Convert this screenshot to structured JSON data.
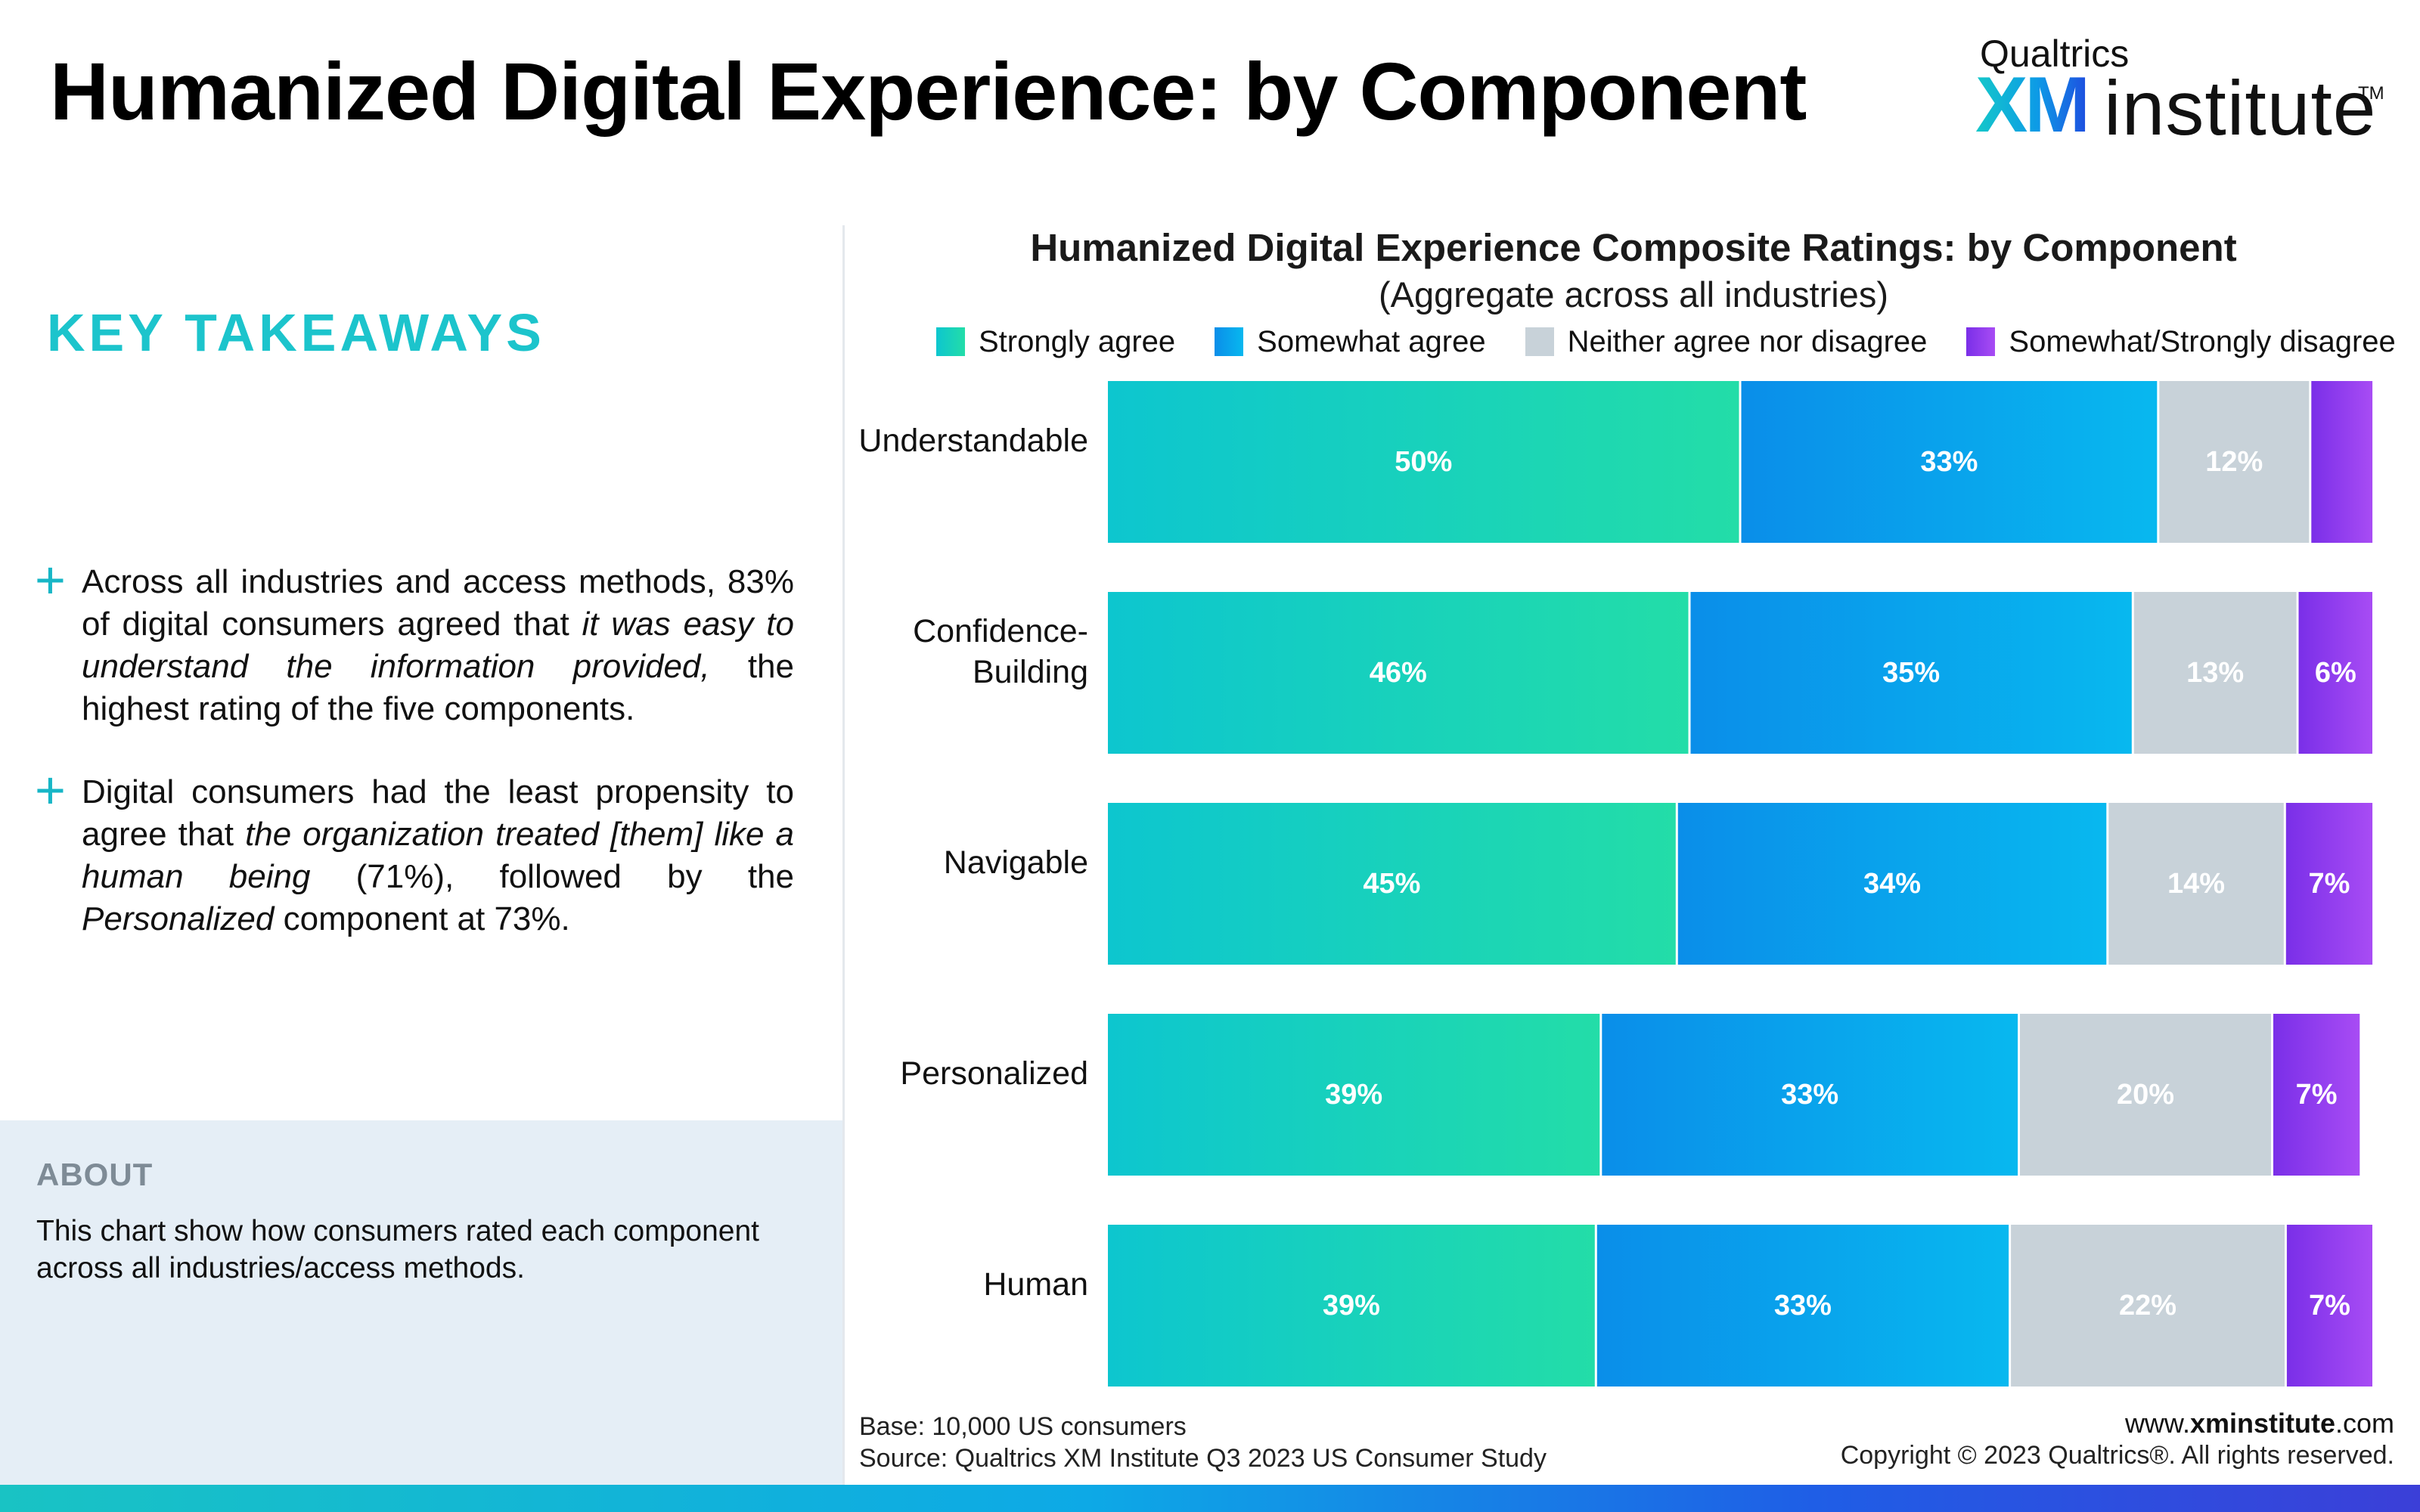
{
  "page": {
    "title": "Humanized Digital Experience: by Component"
  },
  "logo": {
    "brand": "Qualtrics",
    "xm": "XM",
    "institute": "institute",
    "tm": "TM"
  },
  "takeaways": {
    "heading": "KEY TAKEAWAYS",
    "items": [
      {
        "before": "Across all industries and access methods, 83% of digital consumers agreed that ",
        "emphasis": "it was easy to understand the information provided,",
        "after": " the highest rating of the five components."
      },
      {
        "before": "Digital consumers had the least propensity to agree that ",
        "emphasis": "the organization treated [them] like a human being",
        "middle": " (71%), followed by the ",
        "emphasis2": "Personalized",
        "after": " component at 73%."
      }
    ]
  },
  "about": {
    "heading": "ABOUT",
    "text": "This chart show how consumers rated each component across all industries/access methods."
  },
  "chart_data": {
    "type": "bar",
    "orientation": "horizontal",
    "stacked": true,
    "title": "Humanized Digital Experience Composite Ratings: by Component",
    "subtitle": "(Aggregate across all industries)",
    "legend_position": "top",
    "categories": [
      "Understandable",
      "Confidence-\nBuilding",
      "Navigable",
      "Personalized",
      "Human"
    ],
    "series": [
      {
        "name": "Strongly agree",
        "values": [
          50,
          46,
          45,
          39,
          39
        ],
        "labels": [
          "50%",
          "46%",
          "45%",
          "39%",
          "39%"
        ],
        "color_start": "#0dc6cf",
        "color_end": "#23dda8"
      },
      {
        "name": "Somewhat agree",
        "values": [
          33,
          35,
          34,
          33,
          33
        ],
        "labels": [
          "33%",
          "35%",
          "34%",
          "33%",
          "33%"
        ],
        "color_start": "#0a8ee9",
        "color_end": "#08b8ef"
      },
      {
        "name": "Neither agree nor disagree",
        "values": [
          12,
          13,
          14,
          20,
          22
        ],
        "labels": [
          "12%",
          "13%",
          "14%",
          "20%",
          "22%"
        ],
        "color_start": "#c8d2d9",
        "color_end": "#c8d2d9"
      },
      {
        "name": "Somewhat/Strongly disagree",
        "values": [
          5,
          6,
          7,
          7,
          7
        ],
        "labels": [
          "",
          "6%",
          "7%",
          "7%",
          "7%"
        ],
        "color_start": "#7a2fe8",
        "color_end": "#a84cf4"
      }
    ],
    "xlim": [
      0,
      100
    ],
    "grid": false
  },
  "footer": {
    "base": "Base: 10,000 US consumers",
    "source": "Source: Qualtrics XM Institute Q3 2023 US Consumer Study",
    "site_prefix": "www.",
    "site_bold": "xminstitute",
    "site_suffix": ".com",
    "copyright": "Copyright © 2023 Qualtrics®. All rights reserved."
  }
}
